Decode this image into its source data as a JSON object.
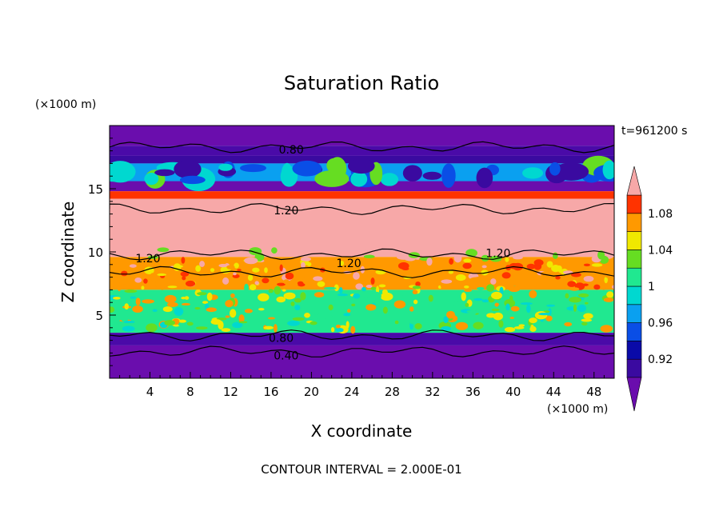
{
  "chart_data": {
    "type": "heatmap",
    "title": "Saturation Ratio",
    "xlabel": "X coordinate",
    "ylabel": "Z coordinate",
    "x_unit": "(×1000 m)",
    "y_unit": "(×1000 m)",
    "time_label": "t=961200 s",
    "footer": "CONTOUR INTERVAL = 2.000E-01",
    "xlim": [
      0,
      50
    ],
    "ylim": [
      0,
      20
    ],
    "x_ticks": [
      4,
      8,
      12,
      16,
      20,
      24,
      28,
      32,
      36,
      40,
      44,
      48
    ],
    "y_ticks": [
      5,
      10,
      15
    ],
    "colorbar": {
      "labels": [
        "1.08",
        "1.04",
        "1",
        "0.96",
        "0.92"
      ],
      "levels": [
        0.9,
        0.92,
        0.94,
        0.96,
        0.98,
        1.0,
        1.02,
        1.04,
        1.06,
        1.08,
        1.1
      ],
      "colors": [
        "#6a0dad",
        "#3a0aa0",
        "#0a0aa8",
        "#0a4ee6",
        "#0aa0f0",
        "#00d8d0",
        "#20e890",
        "#66dd22",
        "#f0e800",
        "#ff9900",
        "#ff3300",
        "#f7a8a8"
      ]
    },
    "contour_labels": [
      {
        "text": "0.80",
        "x": 18,
        "z": 18.1
      },
      {
        "text": "1.20",
        "x": 17.5,
        "z": 13.3
      },
      {
        "text": "1.20",
        "x": 3.8,
        "z": 9.5
      },
      {
        "text": "1.20",
        "x": 23.7,
        "z": 9.1
      },
      {
        "text": "1.20",
        "x": 38.5,
        "z": 9.9
      },
      {
        "text": "0.80",
        "x": 17,
        "z": 3.2
      },
      {
        "text": "0.40",
        "x": 17.5,
        "z": 1.8
      }
    ],
    "bands": [
      {
        "z0": 18.4,
        "z1": 20.0,
        "color": "#6a0dad"
      },
      {
        "z0": 17.6,
        "z1": 18.4,
        "color": "#4a0aa8"
      },
      {
        "z0": 17.0,
        "z1": 17.6,
        "color": "#3a0aa0"
      },
      {
        "z0": 15.6,
        "z1": 17.0,
        "color": "#0aa0f0"
      },
      {
        "z0": 14.8,
        "z1": 15.6,
        "color": "#6a0dad"
      },
      {
        "z0": 14.2,
        "z1": 14.8,
        "color": "#ff3300"
      },
      {
        "z0": 9.6,
        "z1": 14.2,
        "color": "#f7a8a8"
      },
      {
        "z0": 7.0,
        "z1": 9.6,
        "color": "#ff9900"
      },
      {
        "z0": 3.6,
        "z1": 7.0,
        "color": "#20e890"
      },
      {
        "z0": 2.6,
        "z1": 3.6,
        "color": "#4a0aa8"
      },
      {
        "z0": 0.0,
        "z1": 2.6,
        "color": "#6a0dad"
      }
    ]
  }
}
